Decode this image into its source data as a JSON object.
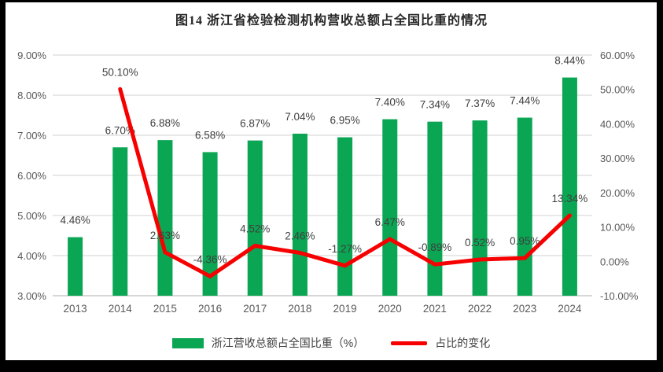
{
  "page": {
    "title": "图14  浙江省检验检测机构营收总额占全国比重的情况"
  },
  "colors": {
    "bar": "#0BA653",
    "line": "#F70000",
    "grid": "#D9D9D9",
    "axis_line": "#BFBFBF",
    "tick_text": "#595959",
    "label_text": "#3F3F3F",
    "background": "#FFFFFF",
    "frame": "#000000"
  },
  "legend": {
    "items": [
      {
        "label": "浙江营收总额占全国比重（%）",
        "marker": "bar-swatch"
      },
      {
        "label": "占比的变化",
        "marker": "line-swatch"
      }
    ]
  },
  "chart_data": {
    "type": "bar",
    "subtype": "combo bar + line, dual y-axis",
    "title": "图14  浙江省检验检测机构营收总额占全国比重的情况",
    "categories": [
      "2013",
      "2014",
      "2015",
      "2016",
      "2017",
      "2018",
      "2019",
      "2020",
      "2021",
      "2022",
      "2023",
      "2024"
    ],
    "series": [
      {
        "name": "浙江营收总额占全国比重（%）",
        "type": "bar",
        "axis": "left",
        "values": [
          4.46,
          6.7,
          6.88,
          6.58,
          6.87,
          7.04,
          6.95,
          7.4,
          7.34,
          7.37,
          7.44,
          8.44
        ],
        "labels": [
          "4.46%",
          "6.70%",
          "6.88%",
          "6.58%",
          "6.87%",
          "7.04%",
          "6.95%",
          "7.40%",
          "7.34%",
          "7.37%",
          "7.44%",
          "8.44%"
        ]
      },
      {
        "name": "占比的变化",
        "type": "line",
        "axis": "right",
        "values": [
          null,
          50.1,
          2.63,
          -4.36,
          4.52,
          2.46,
          -1.27,
          6.47,
          -0.89,
          0.52,
          0.95,
          13.34
        ],
        "labels": [
          null,
          "50.10%",
          "2.63%",
          "-4.36%",
          "4.52%",
          "2.46%",
          "-1.27%",
          "6.47%",
          "-0.89%",
          "0.52%",
          "0.95%",
          "13.34%"
        ]
      }
    ],
    "left_axis": {
      "min": 3,
      "max": 9,
      "ticks": [
        "9.00%",
        "8.00%",
        "7.00%",
        "6.00%",
        "5.00%",
        "4.00%",
        "3.00%"
      ]
    },
    "right_axis": {
      "min": -10,
      "max": 60,
      "ticks": [
        "60.00%",
        "50.00%",
        "40.00%",
        "30.00%",
        "20.00%",
        "10.00%",
        "0.00%",
        "-10.00%"
      ]
    },
    "grid": true,
    "legend_position": "bottom"
  }
}
